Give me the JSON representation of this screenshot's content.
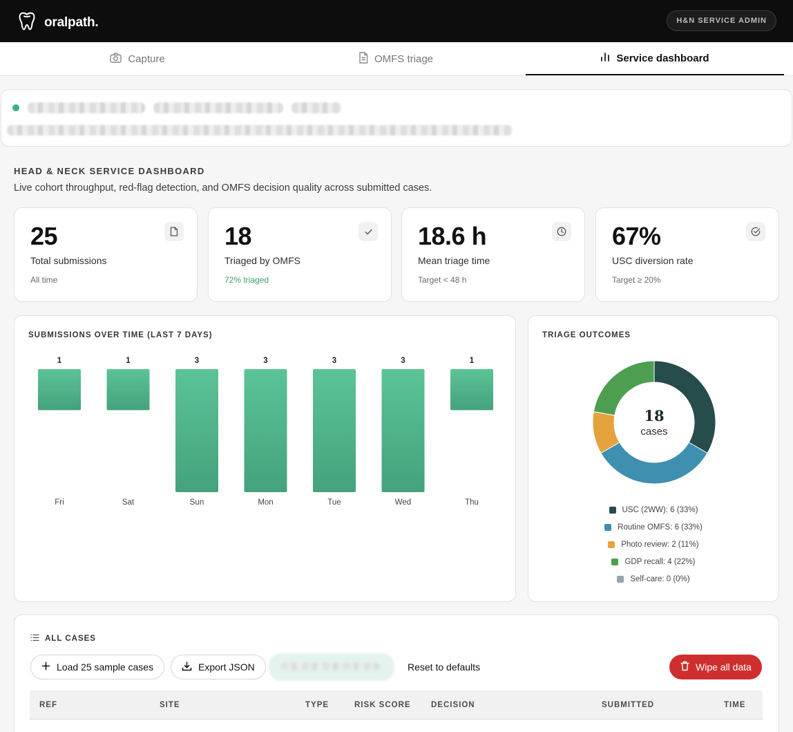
{
  "app": {
    "brand": "oralpath."
  },
  "header": {
    "admin_badge": "H&N SERVICE ADMIN"
  },
  "tabs": [
    {
      "label": "Capture",
      "icon": "camera-icon",
      "active": false
    },
    {
      "label": "OMFS triage",
      "icon": "document-icon",
      "active": false
    },
    {
      "label": "Service dashboard",
      "icon": "bar-chart-icon",
      "active": true
    }
  ],
  "dashboard": {
    "title": "HEAD & NECK SERVICE DASHBOARD",
    "subtitle": "Live cohort throughput, red-flag detection, and OMFS decision quality across submitted cases."
  },
  "kpis": [
    {
      "value": "25",
      "label": "Total submissions",
      "note": "All time",
      "icon": "document-icon"
    },
    {
      "value": "18",
      "label": "Triaged by OMFS",
      "note": "72% triaged",
      "icon": "check-icon"
    },
    {
      "value": "18.6 h",
      "label": "Mean triage time",
      "note": "Target < 48 h",
      "icon": "clock-icon"
    },
    {
      "value": "67%",
      "label": "USC diversion rate",
      "note": "Target ≥ 20%",
      "icon": "check-circle-icon"
    }
  ],
  "submissions_panel": {
    "title": "SUBMISSIONS OVER TIME (LAST 7 DAYS)"
  },
  "outcomes_panel": {
    "title": "TRIAGE OUTCOMES",
    "center_value": "18",
    "center_label": "cases"
  },
  "chart_data": [
    {
      "type": "bar",
      "title": "SUBMISSIONS OVER TIME (LAST 7 DAYS)",
      "categories": [
        "Fri",
        "Sat",
        "Sun",
        "Mon",
        "Tue",
        "Wed",
        "Thu"
      ],
      "values": [
        1,
        1,
        3,
        3,
        3,
        3,
        1
      ],
      "color": "#4fb48a"
    },
    {
      "type": "pie",
      "title": "TRIAGE OUTCOMES",
      "slices": [
        {
          "label": "USC (2WW): 6 (33%)",
          "value": 6,
          "color": "#264d4b"
        },
        {
          "label": "Routine OMFS: 6 (33%)",
          "value": 6,
          "color": "#3e8fb0"
        },
        {
          "label": "Photo review: 2 (11%)",
          "value": 2,
          "color": "#e6a23c"
        },
        {
          "label": "GDP recall: 4 (22%)",
          "value": 4,
          "color": "#4e9e52"
        },
        {
          "label": "Self-care: 0 (0%)",
          "value": 0,
          "color": "#98a3ad"
        }
      ]
    }
  ],
  "cases": {
    "heading": "ALL CASES",
    "buttons": {
      "load": "Load 25 sample cases",
      "export": "Export JSON",
      "reset": "Reset to defaults",
      "wipe": "Wipe all data"
    },
    "columns": [
      "REF",
      "SITE",
      "TYPE",
      "RISK SCORE",
      "DECISION",
      "SUBMITTED",
      "TIME"
    ]
  }
}
